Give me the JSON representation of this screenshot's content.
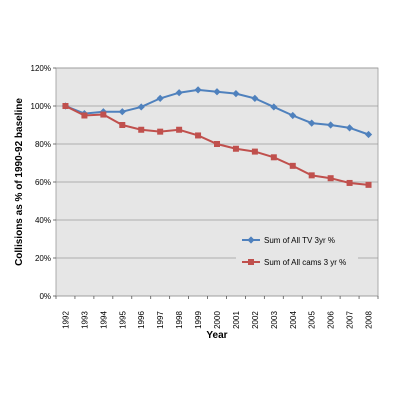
{
  "chart_data": {
    "type": "line",
    "title": "",
    "xlabel": "Year",
    "ylabel": "Collisions as % of 1990-92 baseline",
    "ylim": [
      0,
      120
    ],
    "yticks": [
      "0%",
      "20%",
      "40%",
      "60%",
      "80%",
      "100%",
      "120%"
    ],
    "ytick_values": [
      0,
      20,
      40,
      60,
      80,
      100,
      120
    ],
    "categories": [
      "1992",
      "1993",
      "1994",
      "1995",
      "1996",
      "1997",
      "1998",
      "1999",
      "2000",
      "2001",
      "2002",
      "2003",
      "2004",
      "2005",
      "2006",
      "2007",
      "2008"
    ],
    "grid": "horizontal",
    "legend_position": "right",
    "plot_background": "#e6e6e6",
    "series": [
      {
        "name": "Sum of All TV 3yr %",
        "color": "#4f81bd",
        "marker": "diamond",
        "values": [
          100,
          96,
          97,
          97,
          99.5,
          104,
          107,
          108.5,
          107.5,
          106.5,
          104,
          99.5,
          95,
          91,
          90,
          88.5,
          85
        ]
      },
      {
        "name": "Sum of All cams 3 yr %",
        "color": "#c0504d",
        "marker": "square",
        "values": [
          100,
          95,
          95.5,
          90,
          87.5,
          86.5,
          87.5,
          84.5,
          80,
          77.5,
          76,
          73,
          68.5,
          63.5,
          62,
          59.5,
          58.5
        ]
      }
    ]
  }
}
